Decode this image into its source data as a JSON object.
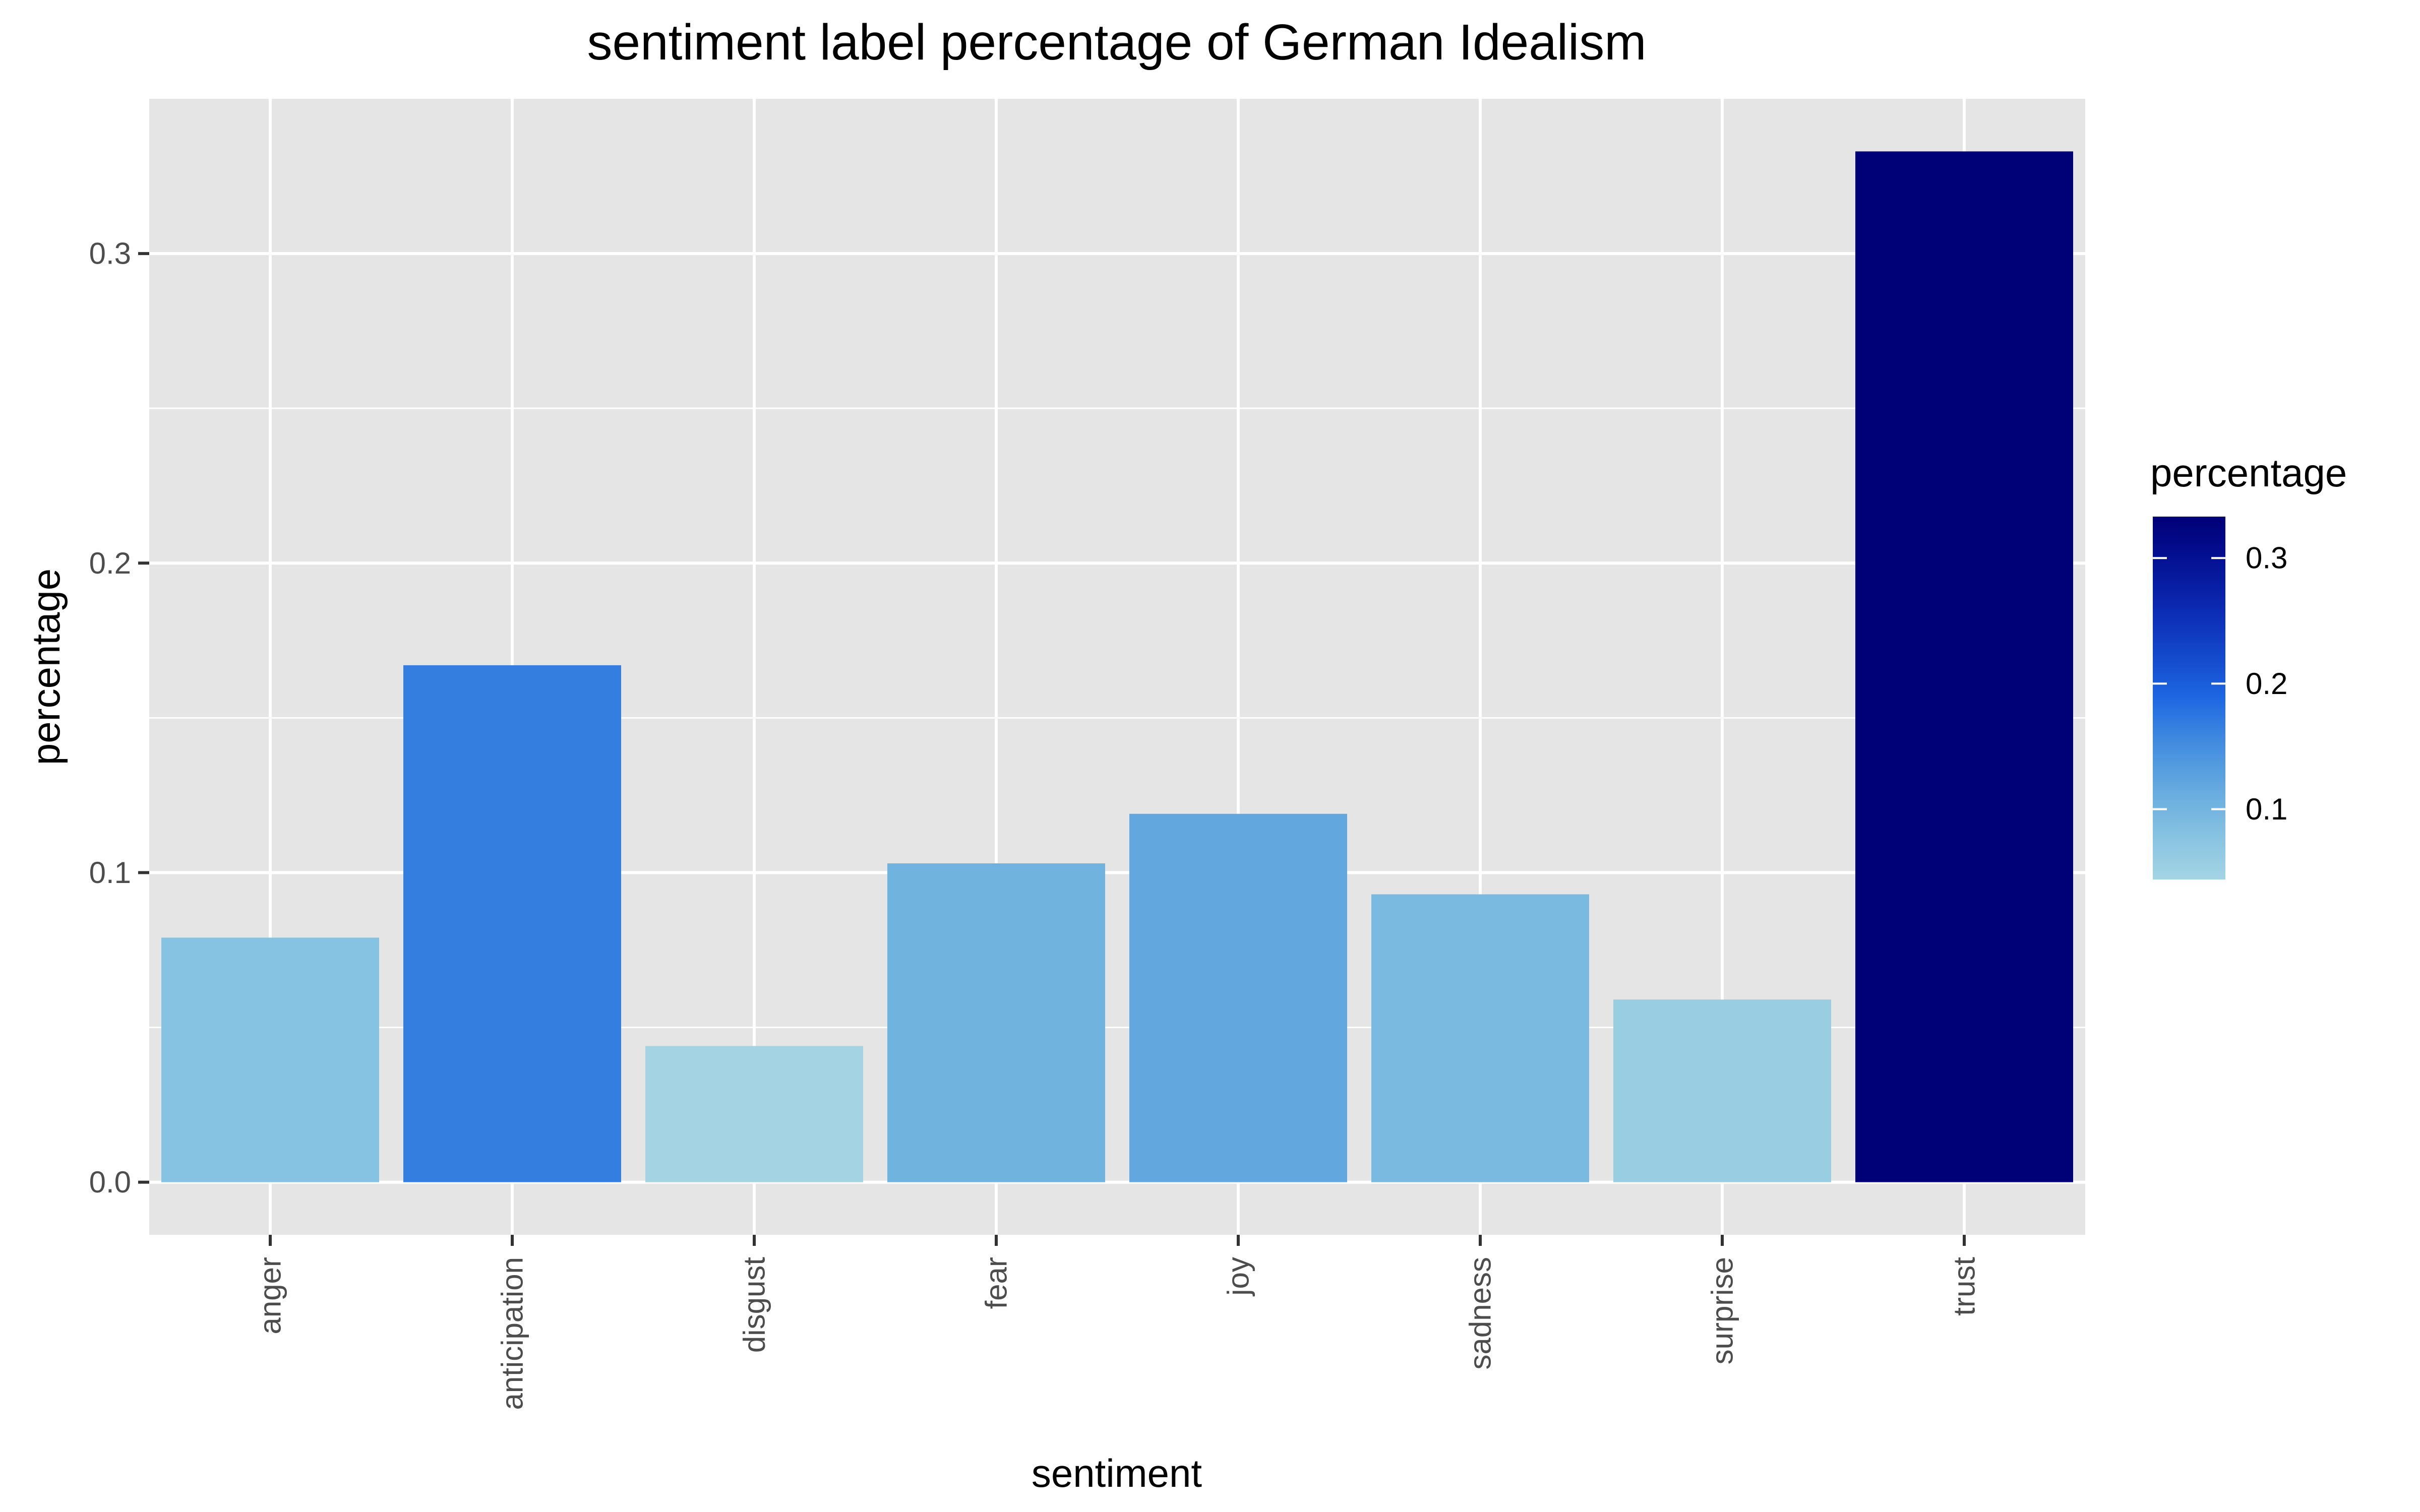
{
  "chart_data": {
    "type": "bar",
    "title": "sentiment label percentage of German Idealism",
    "xlabel": "sentiment",
    "ylabel": "percentage",
    "categories": [
      "anger",
      "anticipation",
      "disgust",
      "fear",
      "joy",
      "sadness",
      "surprise",
      "trust"
    ],
    "values": [
      0.079,
      0.167,
      0.044,
      0.103,
      0.119,
      0.093,
      0.059,
      0.333
    ],
    "ylim": [
      -0.017,
      0.35
    ],
    "yticks": [
      0.0,
      0.1,
      0.2,
      0.3
    ],
    "ytick_labels": [
      "0.0",
      "0.1",
      "0.2",
      "0.3"
    ],
    "grid": true,
    "legend": {
      "title": "percentage",
      "placement": "right",
      "type": "gradient",
      "low_color": "#a4d4e4",
      "high_color": "#000077",
      "range": [
        0.044,
        0.333
      ],
      "ticks": [
        0.1,
        0.2,
        0.3
      ],
      "tick_labels": [
        "0.1",
        "0.2",
        "0.3"
      ]
    },
    "colors": {
      "panel_background": "#e5e5e5",
      "grid": "#ffffff"
    }
  }
}
